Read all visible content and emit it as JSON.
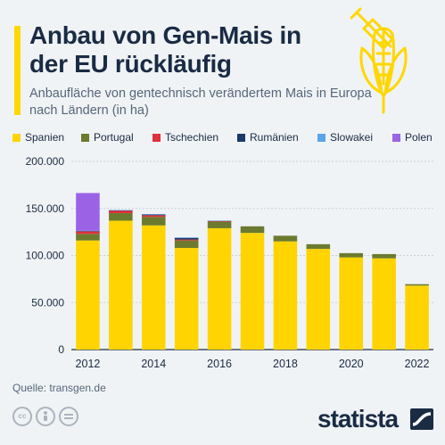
{
  "title": "Anbau von Gen-Mais in der EU rückläufig",
  "subtitle": "Anbaufläche von gentechnisch verändertem Mais in Europa nach Ländern (in ha)",
  "source": "Quelle: transgen.de",
  "brand": "statista",
  "icons": [
    "corn-syringe-icon",
    "cc-icon",
    "person-icon",
    "equals-icon",
    "statista-logo-icon"
  ],
  "colors": {
    "accent": "#ffd700",
    "background": "#f0f3f5",
    "title": "#1a2b44"
  },
  "chart_data": {
    "type": "bar",
    "stacked": true,
    "categories": [
      "2012",
      "2013",
      "2014",
      "2015",
      "2016",
      "2017",
      "2018",
      "2019",
      "2020",
      "2021",
      "2022"
    ],
    "x_tick_labels": [
      "2012",
      "2014",
      "2016",
      "2018",
      "2020",
      "2022"
    ],
    "series": [
      {
        "name": "Spanien",
        "color": "#ffd400",
        "values": [
          116000,
          137000,
          132000,
          108000,
          129000,
          124000,
          115000,
          107000,
          98000,
          97000,
          68000
        ]
      },
      {
        "name": "Portugal",
        "color": "#6b7a2e",
        "values": [
          7000,
          8000,
          9000,
          8000,
          7000,
          7000,
          6000,
          5000,
          4500,
          4500,
          1500
        ]
      },
      {
        "name": "Tschechien",
        "color": "#e0303a",
        "values": [
          3000,
          3000,
          1800,
          1000,
          1000,
          0,
          0,
          0,
          0,
          0,
          0
        ]
      },
      {
        "name": "Rumänien",
        "color": "#1b3a6b",
        "values": [
          200,
          200,
          800,
          2000,
          0,
          0,
          0,
          0,
          0,
          0,
          0
        ]
      },
      {
        "name": "Slowakei",
        "color": "#5aa5e6",
        "values": [
          200,
          100,
          400,
          100,
          100,
          0,
          0,
          0,
          0,
          0,
          0
        ]
      },
      {
        "name": "Polen",
        "color": "#9a63e6",
        "values": [
          40000,
          0,
          0,
          0,
          0,
          0,
          0,
          0,
          0,
          0,
          0
        ]
      }
    ],
    "y_ticks": [
      "0",
      "50.000",
      "100.000",
      "150.000",
      "200.000"
    ],
    "y_tick_values": [
      0,
      50000,
      100000,
      150000,
      200000
    ],
    "ylim": [
      0,
      200000
    ],
    "grid": true,
    "legend_position": "top"
  }
}
